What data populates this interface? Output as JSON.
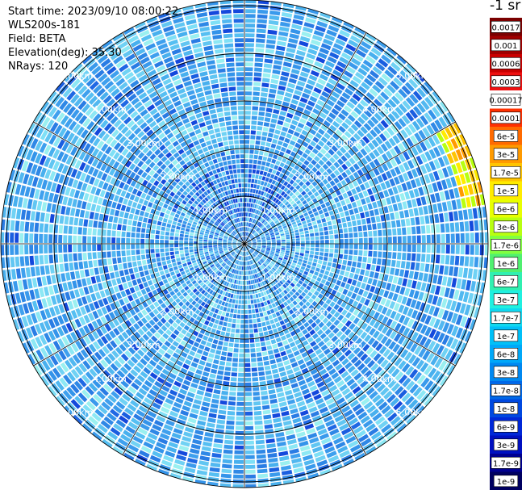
{
  "info": {
    "start_time": "Start time: 2023/09/10 08:00:22",
    "instrument": "WLS200s-181",
    "field": "Field: BETA",
    "elevation": "Elevation(deg): 35.30",
    "nrays": "NRays: 120"
  },
  "colorbar": {
    "title": "-1 sr",
    "labels": [
      "0.0017",
      "0.001",
      "0.0006",
      "0.0003",
      "0.00017",
      "0.0001",
      "6e-5",
      "3e-5",
      "1.7e-5",
      "1e-5",
      "6e-6",
      "3e-6",
      "1.7e-6",
      "1e-6",
      "6e-7",
      "3e-7",
      "1.7e-7",
      "1e-7",
      "6e-8",
      "3e-8",
      "1.7e-8",
      "1e-8",
      "6e-9",
      "3e-9",
      "1.7e-9",
      "1e-9"
    ],
    "colors": [
      "#7a0000",
      "#a00000",
      "#c80000",
      "#ee1010",
      "#ffffff",
      "#ff3000",
      "#ff6a00",
      "#ff9a00",
      "#ffc400",
      "#ffec00",
      "#e8ff00",
      "#b8ff10",
      "#80ff40",
      "#50f070",
      "#30f0b0",
      "#20f0e0",
      "#10d8f0",
      "#00c0f8",
      "#00a8f8",
      "#0088f0",
      "#0068e8",
      "#0048e0",
      "#0028d8",
      "#0010c0",
      "#000090",
      "#000060"
    ]
  },
  "chart_data": {
    "type": "heatmap",
    "projection": "polar PPI scan",
    "field": "BETA",
    "units": "sr-1",
    "elevation_deg": 35.3,
    "n_rays": 120,
    "range_rings_km": [
      1,
      2,
      3,
      4,
      5
    ],
    "ring_labels": [
      "1.00km",
      "2.00km",
      "3.00km",
      "4.00km",
      "5.00km"
    ],
    "max_range_km": 5.85,
    "dominant_value": "1.7e-7",
    "notable_features": [
      {
        "description": "elevated backscatter arc",
        "azimuth_deg": [
          58,
          78
        ],
        "range_km": [
          4.6,
          5.2
        ],
        "value_range": [
          "1e-6",
          "3e-5"
        ]
      },
      {
        "description": "low backscatter near center",
        "range_km": [
          0,
          1.5
        ],
        "value_range": [
          "3e-9",
          "3e-8"
        ]
      }
    ]
  }
}
